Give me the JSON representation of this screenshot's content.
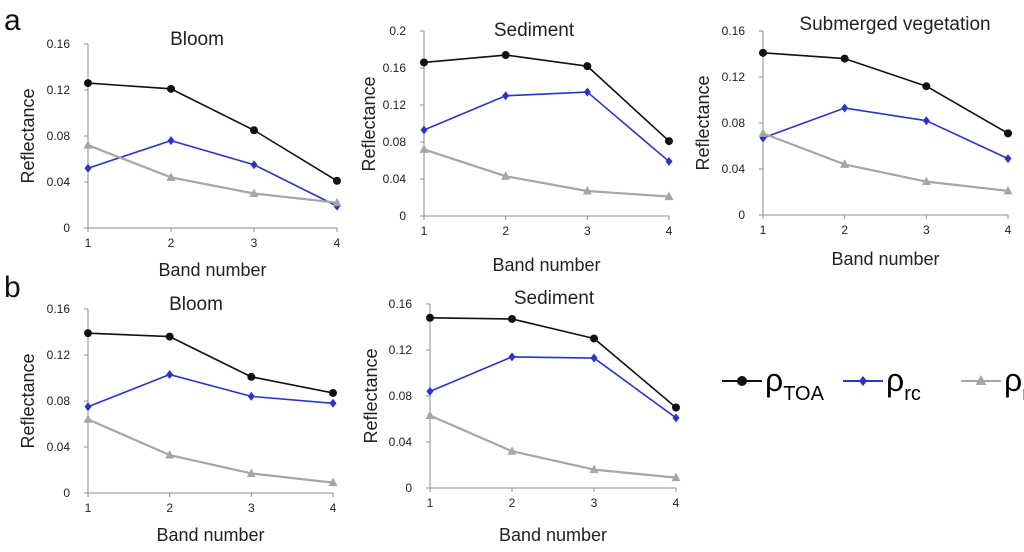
{
  "panel_labels": [
    "a",
    "b"
  ],
  "legend": [
    {
      "symbol": "ρ",
      "subscript": "TOA",
      "color": "#111111",
      "marker": "circle"
    },
    {
      "symbol": "ρ",
      "subscript": "rc",
      "color": "#2a35c8",
      "marker": "diamond"
    },
    {
      "symbol": "ρ",
      "subscript": "r",
      "color": "#a6a6a6",
      "marker": "triangle"
    }
  ],
  "chart_data": [
    {
      "type": "line",
      "panel": "a",
      "title": "Bloom",
      "xlabel": "Band number",
      "ylabel": "Reflectance",
      "x": [
        1,
        2,
        3,
        4
      ],
      "ylim": [
        0,
        0.16
      ],
      "yticks": [
        "0",
        "0.04",
        "0.08",
        "0.12",
        "0.16"
      ],
      "series": [
        {
          "color": "#111111",
          "marker": "circle",
          "values": [
            0.126,
            0.121,
            0.085,
            0.041
          ]
        },
        {
          "color": "#2a35c8",
          "marker": "diamond",
          "values": [
            0.052,
            0.076,
            0.055,
            0.019
          ]
        },
        {
          "color": "#a6a6a6",
          "marker": "triangle",
          "values": [
            0.072,
            0.044,
            0.03,
            0.022
          ]
        }
      ]
    },
    {
      "type": "line",
      "panel": "a",
      "title": "Sediment",
      "xlabel": "Band number",
      "ylabel": "Reflectance",
      "x": [
        1,
        2,
        3,
        4
      ],
      "ylim": [
        0,
        0.2
      ],
      "yticks": [
        "0",
        "0.04",
        "0.08",
        "0.12",
        "0.16",
        "0.2"
      ],
      "series": [
        {
          "color": "#111111",
          "marker": "circle",
          "values": [
            0.166,
            0.174,
            0.162,
            0.081
          ]
        },
        {
          "color": "#2a35c8",
          "marker": "diamond",
          "values": [
            0.093,
            0.13,
            0.134,
            0.059
          ]
        },
        {
          "color": "#a6a6a6",
          "marker": "triangle",
          "values": [
            0.072,
            0.043,
            0.027,
            0.021
          ]
        }
      ]
    },
    {
      "type": "line",
      "panel": "a",
      "title": "Submerged vegetation",
      "xlabel": "Band number",
      "ylabel": "Reflectance",
      "x": [
        1,
        2,
        3,
        4
      ],
      "ylim": [
        0,
        0.16
      ],
      "yticks": [
        "0",
        "0.04",
        "0.08",
        "0.12",
        "0.16"
      ],
      "series": [
        {
          "color": "#111111",
          "marker": "circle",
          "values": [
            0.141,
            0.136,
            0.112,
            0.071
          ]
        },
        {
          "color": "#2a35c8",
          "marker": "diamond",
          "values": [
            0.067,
            0.093,
            0.082,
            0.049
          ]
        },
        {
          "color": "#a6a6a6",
          "marker": "triangle",
          "values": [
            0.071,
            0.044,
            0.029,
            0.021
          ]
        }
      ]
    },
    {
      "type": "line",
      "panel": "b",
      "title": "Bloom",
      "xlabel": "Band number",
      "ylabel": "Reflectance",
      "x": [
        1,
        2,
        3,
        4
      ],
      "ylim": [
        0,
        0.16
      ],
      "yticks": [
        "0",
        "0.04",
        "0.08",
        "0.12",
        "0.16"
      ],
      "series": [
        {
          "color": "#111111",
          "marker": "circle",
          "values": [
            0.139,
            0.136,
            0.101,
            0.087
          ]
        },
        {
          "color": "#2a35c8",
          "marker": "diamond",
          "values": [
            0.075,
            0.103,
            0.084,
            0.078
          ]
        },
        {
          "color": "#a6a6a6",
          "marker": "triangle",
          "values": [
            0.064,
            0.033,
            0.017,
            0.009
          ]
        }
      ]
    },
    {
      "type": "line",
      "panel": "b",
      "title": "Sediment",
      "xlabel": "Band number",
      "ylabel": "Reflectance",
      "x": [
        1,
        2,
        3,
        4
      ],
      "ylim": [
        0,
        0.16
      ],
      "yticks": [
        "0",
        "0.04",
        "0.08",
        "0.12",
        "0.16"
      ],
      "series": [
        {
          "color": "#111111",
          "marker": "circle",
          "values": [
            0.148,
            0.147,
            0.13,
            0.07
          ]
        },
        {
          "color": "#2a35c8",
          "marker": "diamond",
          "values": [
            0.084,
            0.114,
            0.113,
            0.061
          ]
        },
        {
          "color": "#a6a6a6",
          "marker": "triangle",
          "values": [
            0.063,
            0.032,
            0.016,
            0.009
          ]
        }
      ]
    }
  ]
}
